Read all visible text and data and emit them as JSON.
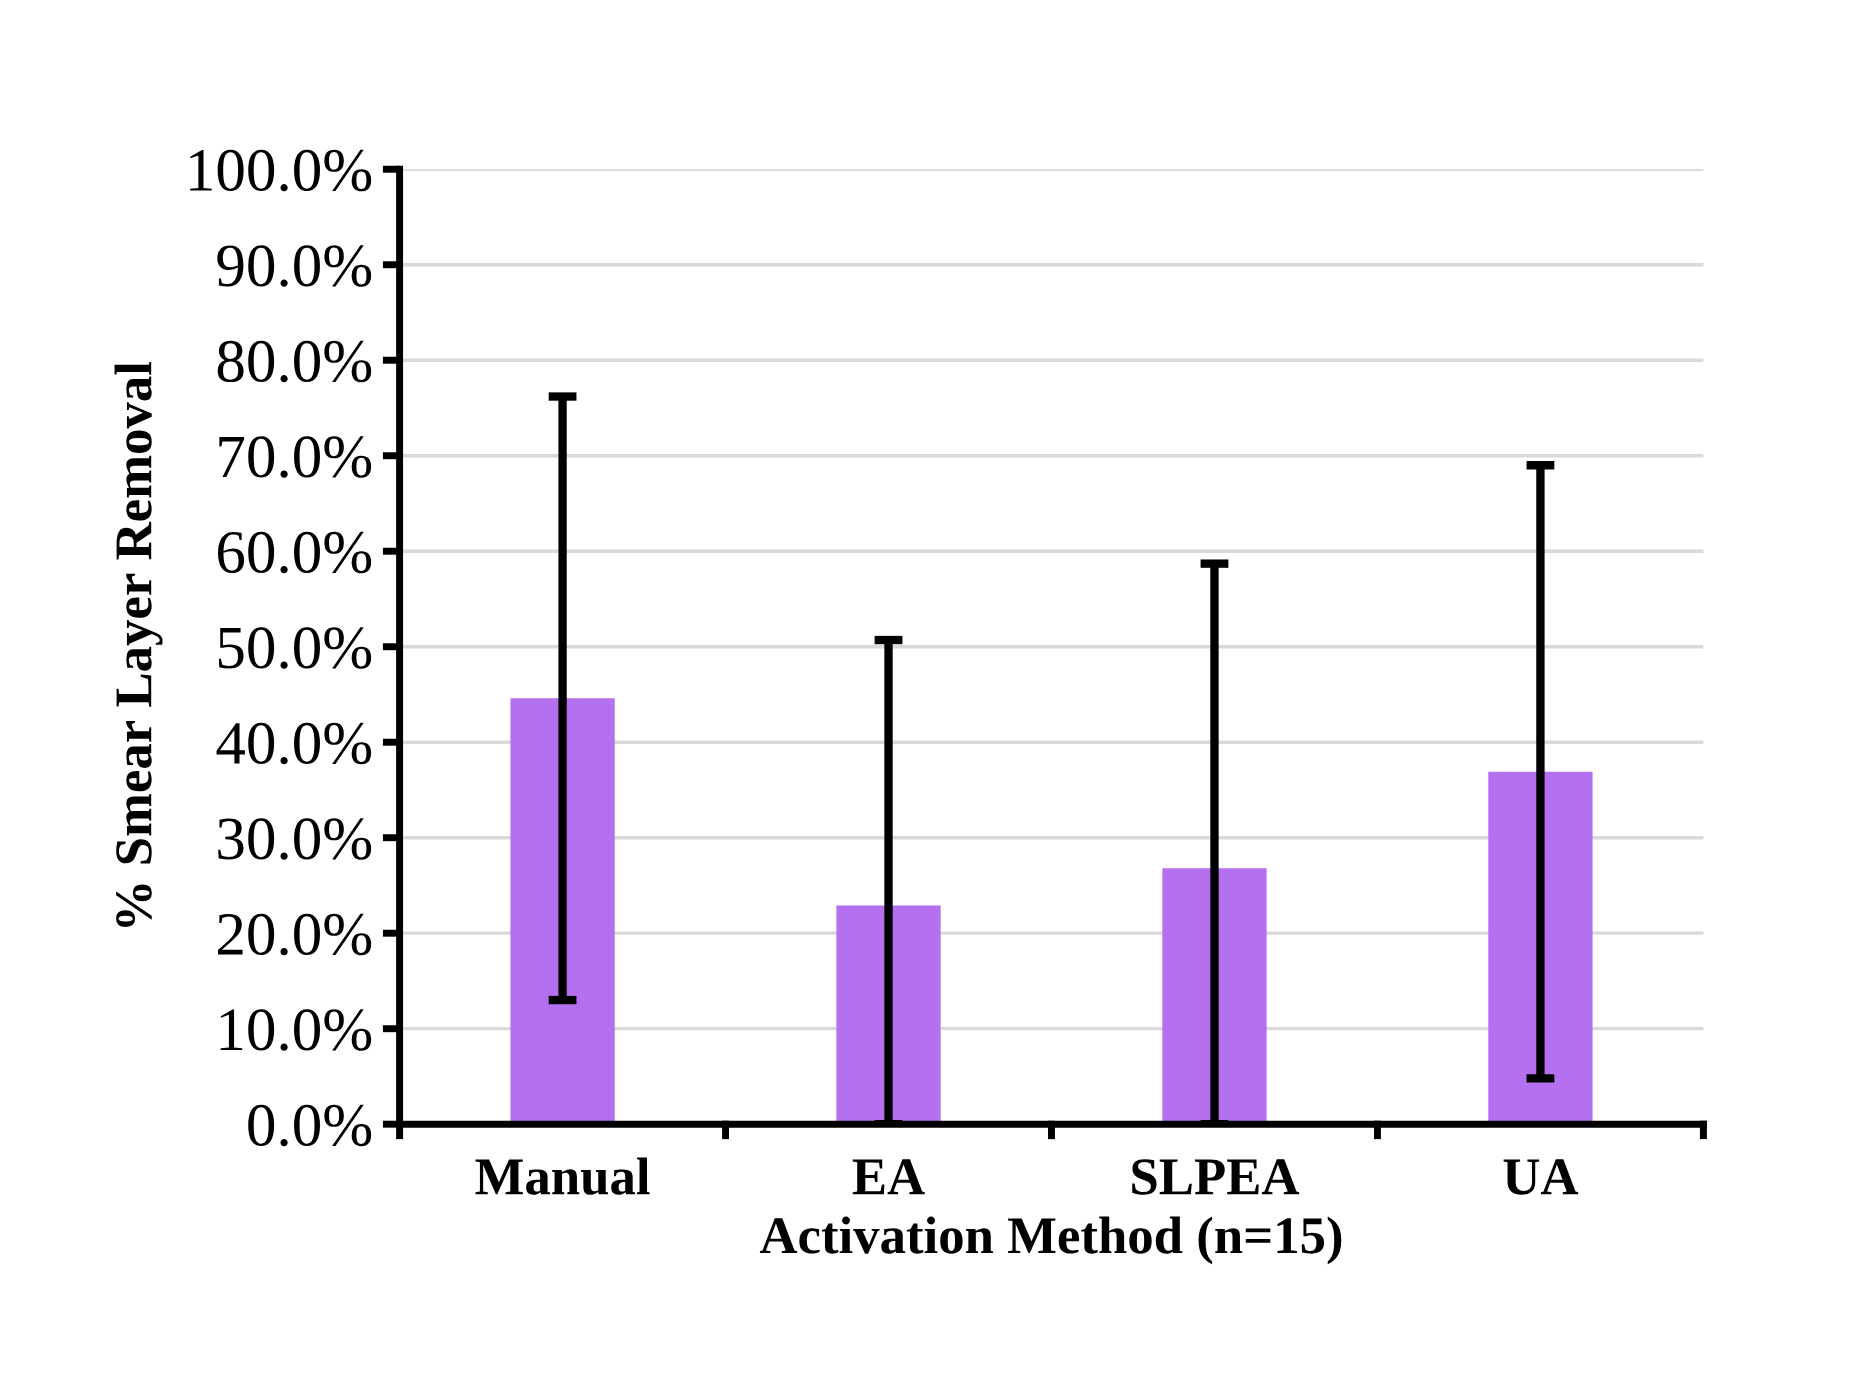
{
  "chart_data": {
    "type": "bar",
    "xlabel": "Activation Method (n=15)",
    "ylabel": "% Smear Layer Removal",
    "categories": [
      "Manual",
      "EA",
      "SLPEA",
      "UA"
    ],
    "values": [
      44.6,
      22.9,
      26.8,
      36.9
    ],
    "errors": [
      31.6,
      [
        0,
        50.7
      ],
      [
        0,
        58.7
      ],
      32.1
    ],
    "color": "#b570f0",
    "ylim": [
      0,
      100
    ],
    "yticks": [
      {
        "value": 0,
        "label": "0.0%"
      },
      {
        "value": 10,
        "label": "10.0%"
      },
      {
        "value": 20,
        "label": "20.0%"
      },
      {
        "value": 30,
        "label": "30.0%"
      },
      {
        "value": 40,
        "label": "40.0%"
      },
      {
        "value": 50,
        "label": "50.0%"
      },
      {
        "value": 60,
        "label": "60.0%"
      },
      {
        "value": 70,
        "label": "70.0%"
      },
      {
        "value": 80,
        "label": "80.0%"
      },
      {
        "value": 90,
        "label": "90.0%"
      },
      {
        "value": 100,
        "label": "100.0%"
      }
    ],
    "grid": "y"
  }
}
